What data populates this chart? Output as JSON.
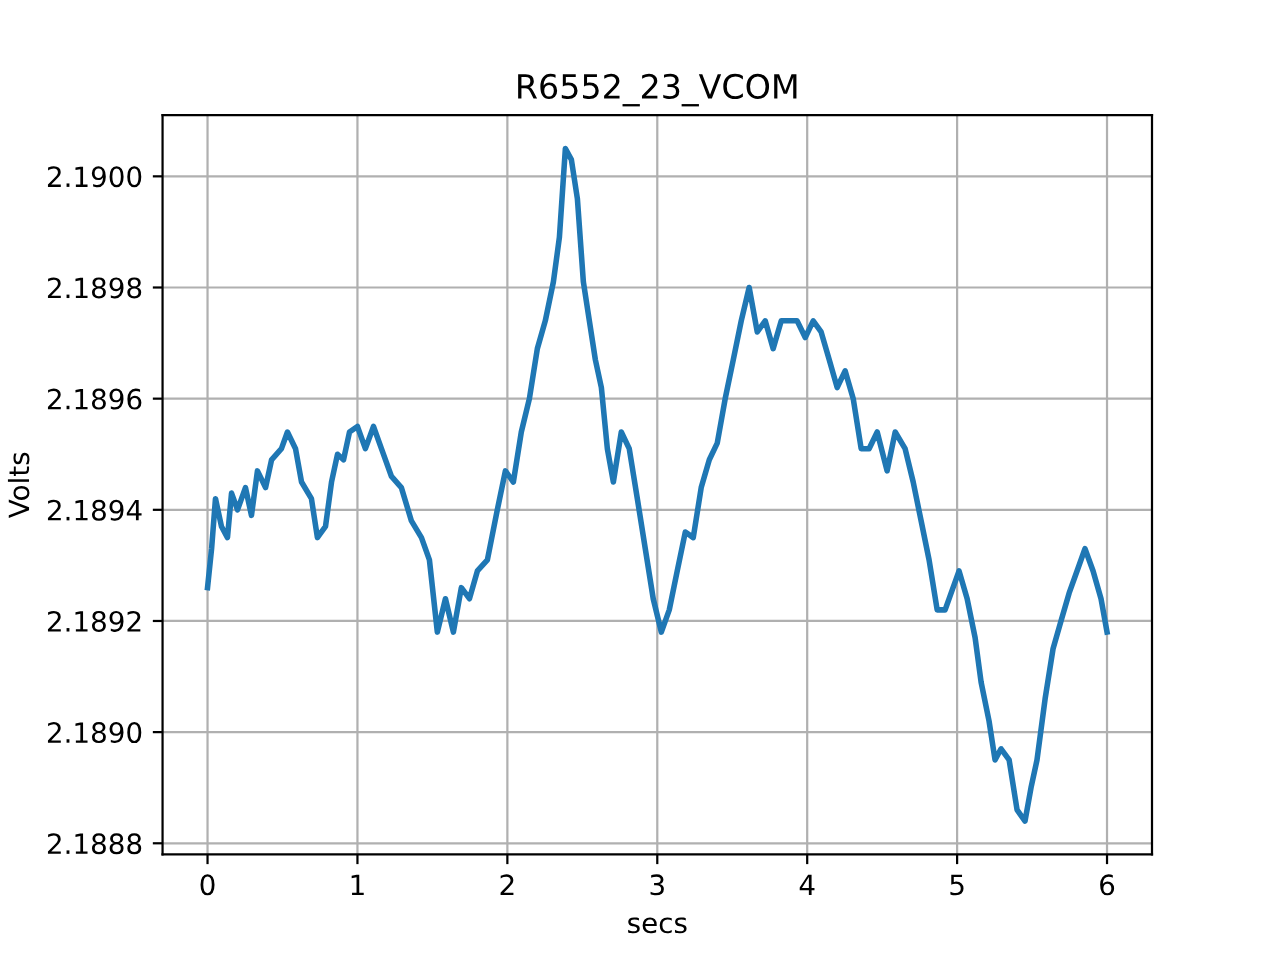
{
  "chart_data": {
    "type": "line",
    "title": "R6552_23_VCOM",
    "xlabel": "secs",
    "ylabel": "Volts",
    "xlim": [
      -0.3,
      6.3
    ],
    "ylim": [
      2.18878,
      2.19011
    ],
    "xticks": [
      0,
      1,
      2,
      3,
      4,
      5,
      6
    ],
    "yticks": [
      2.1888,
      {
        "value": 2.189,
        "label": "2.1890"
      },
      2.1892,
      2.1894,
      2.1896,
      2.1898,
      {
        "value": 2.19,
        "label": "2.1900"
      }
    ],
    "grid": true,
    "series": [
      {
        "color": "#1f77b4",
        "x": [
          0,
          0.027,
          0.053,
          0.093,
          0.133,
          0.16,
          0.2,
          0.253,
          0.293,
          0.333,
          0.387,
          0.427,
          0.493,
          0.533,
          0.587,
          0.627,
          0.693,
          0.733,
          0.787,
          0.827,
          0.867,
          0.907,
          0.947,
          1.0,
          1.053,
          1.107,
          1.16,
          1.227,
          1.293,
          1.36,
          1.427,
          1.48,
          1.533,
          1.587,
          1.64,
          1.693,
          1.747,
          1.8,
          1.867,
          1.933,
          1.987,
          2.04,
          2.093,
          2.147,
          2.2,
          2.253,
          2.307,
          2.347,
          2.387,
          2.427,
          2.467,
          2.507,
          2.547,
          2.587,
          2.627,
          2.667,
          2.707,
          2.76,
          2.813,
          2.867,
          2.92,
          2.973,
          3.027,
          3.08,
          3.133,
          3.187,
          3.24,
          3.293,
          3.347,
          3.4,
          3.453,
          3.507,
          3.56,
          3.613,
          3.667,
          3.72,
          3.773,
          3.827,
          3.88,
          3.933,
          3.987,
          4.04,
          4.093,
          4.147,
          4.2,
          4.253,
          4.307,
          4.36,
          4.413,
          4.467,
          4.533,
          4.587,
          4.653,
          4.707,
          4.76,
          4.813,
          4.867,
          4.92,
          4.973,
          5.013,
          5.067,
          5.12,
          5.16,
          5.213,
          5.253,
          5.293,
          5.347,
          5.4,
          5.453,
          5.493,
          5.533,
          5.587,
          5.64,
          5.693,
          5.747,
          5.8,
          5.853,
          5.907,
          5.96,
          6.0
        ],
        "values": [
          2.18926,
          2.18933,
          2.18942,
          2.18937,
          2.18935,
          2.18943,
          2.1894,
          2.18944,
          2.18939,
          2.18947,
          2.18944,
          2.18949,
          2.18951,
          2.18954,
          2.18951,
          2.18945,
          2.18942,
          2.18935,
          2.18937,
          2.18945,
          2.1895,
          2.18949,
          2.18954,
          2.18955,
          2.18951,
          2.18955,
          2.18951,
          2.18946,
          2.18944,
          2.18938,
          2.18935,
          2.18931,
          2.18918,
          2.18924,
          2.18918,
          2.18926,
          2.18924,
          2.18929,
          2.18931,
          2.1894,
          2.18947,
          2.18945,
          2.18954,
          2.1896,
          2.18969,
          2.18974,
          2.18981,
          2.18989,
          2.19005,
          2.19003,
          2.18996,
          2.18981,
          2.18974,
          2.18967,
          2.18962,
          2.18951,
          2.18945,
          2.18954,
          2.18951,
          2.18942,
          2.18933,
          2.18924,
          2.18918,
          2.18922,
          2.18929,
          2.18936,
          2.18935,
          2.18944,
          2.18949,
          2.18952,
          2.1896,
          2.18967,
          2.18974,
          2.1898,
          2.18972,
          2.18974,
          2.18969,
          2.18974,
          2.18974,
          2.18974,
          2.18971,
          2.18974,
          2.18972,
          2.18967,
          2.18962,
          2.18965,
          2.1896,
          2.18951,
          2.18951,
          2.18954,
          2.18947,
          2.18954,
          2.18951,
          2.18945,
          2.18938,
          2.18931,
          2.18922,
          2.18922,
          2.18926,
          2.18929,
          2.18924,
          2.18917,
          2.18909,
          2.18902,
          2.18895,
          2.18897,
          2.18895,
          2.18886,
          2.18884,
          2.1889,
          2.18895,
          2.18906,
          2.18915,
          2.1892,
          2.18925,
          2.18929,
          2.18933,
          2.18929,
          2.18924,
          2.18918
        ]
      }
    ]
  }
}
